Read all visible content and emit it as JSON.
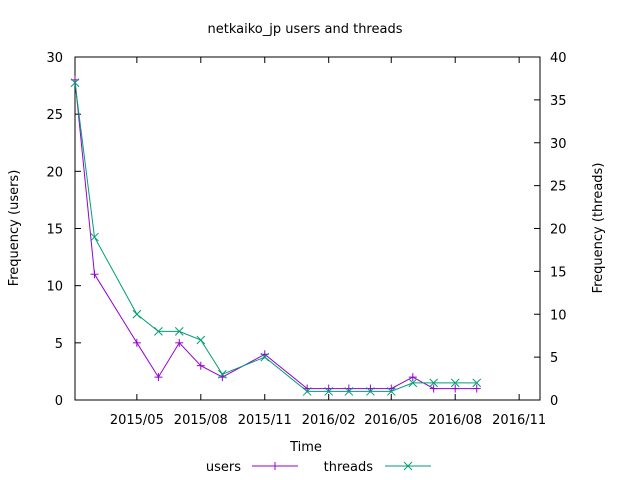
{
  "chart_data": {
    "type": "line",
    "title": "netkaiko_jp users and threads",
    "xlabel": "Time",
    "ylabel_left": "Frequency (users)",
    "ylabel_right": "Frequency (threads)",
    "ylim_left": [
      0,
      30
    ],
    "ylim_right": [
      0,
      40
    ],
    "yticks_left": [
      "0",
      "5",
      "10",
      "15",
      "20",
      "25",
      "30"
    ],
    "yticks_right": [
      "0",
      "5",
      "10",
      "15",
      "20",
      "25",
      "30",
      "35",
      "40"
    ],
    "x_range": [
      "2015-02-01",
      "2016-12-01"
    ],
    "xticks": [
      {
        "date": "2015-05-01",
        "label": "2015/05"
      },
      {
        "date": "2015-08-01",
        "label": "2015/08"
      },
      {
        "date": "2015-11-01",
        "label": "2015/11"
      },
      {
        "date": "2016-02-01",
        "label": "2016/02"
      },
      {
        "date": "2016-05-01",
        "label": "2016/05"
      },
      {
        "date": "2016-08-01",
        "label": "2016/08"
      },
      {
        "date": "2016-11-01",
        "label": "2016/11"
      }
    ],
    "grid": false,
    "legend_position": "bottom-center",
    "series": [
      {
        "name": "users",
        "axis": "left",
        "color": "#9400d3",
        "marker": "plus",
        "x": [
          "2015-02-01",
          "2015-03-01",
          "2015-05-01",
          "2015-06-01",
          "2015-07-01",
          "2015-08-01",
          "2015-09-01",
          "2015-11-01",
          "2016-01-01",
          "2016-02-01",
          "2016-03-01",
          "2016-04-01",
          "2016-05-01",
          "2016-06-01",
          "2016-07-01",
          "2016-08-01",
          "2016-09-01"
        ],
        "y": [
          28,
          11,
          5,
          2,
          5,
          3,
          2,
          4,
          1,
          1,
          1,
          1,
          1,
          2,
          1,
          1,
          1
        ]
      },
      {
        "name": "threads",
        "axis": "right",
        "color": "#009e73",
        "marker": "cross",
        "x": [
          "2015-02-01",
          "2015-03-01",
          "2015-05-01",
          "2015-06-01",
          "2015-07-01",
          "2015-08-01",
          "2015-09-01",
          "2015-11-01",
          "2016-01-01",
          "2016-02-01",
          "2016-03-01",
          "2016-04-01",
          "2016-05-01",
          "2016-06-01",
          "2016-07-01",
          "2016-08-01",
          "2016-09-01"
        ],
        "y": [
          37,
          19,
          10,
          8,
          8,
          7,
          3,
          5,
          1,
          1,
          1,
          1,
          1,
          2,
          2,
          2,
          2
        ]
      }
    ]
  }
}
